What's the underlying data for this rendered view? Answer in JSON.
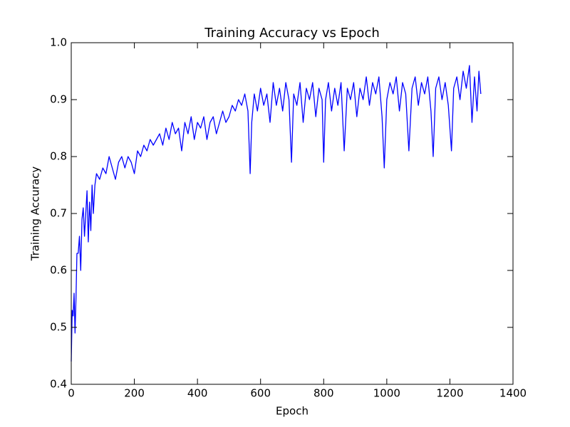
{
  "chart_data": {
    "type": "line",
    "title": "Training Accuracy vs Epoch",
    "x_label": "Epoch",
    "y_label": "Training Accuracy",
    "color": "#0000ff",
    "x": [
      0,
      3,
      6,
      9,
      12,
      15,
      18,
      22,
      26,
      30,
      34,
      38,
      42,
      46,
      50,
      54,
      58,
      62,
      66,
      70,
      75,
      80,
      90,
      100,
      110,
      120,
      130,
      140,
      150,
      160,
      170,
      180,
      190,
      200,
      210,
      220,
      230,
      240,
      250,
      260,
      270,
      280,
      290,
      300,
      310,
      320,
      330,
      340,
      350,
      360,
      370,
      380,
      390,
      400,
      410,
      420,
      430,
      440,
      450,
      460,
      470,
      480,
      490,
      500,
      510,
      520,
      530,
      540,
      550,
      560,
      567,
      572,
      580,
      590,
      600,
      610,
      620,
      630,
      640,
      650,
      660,
      670,
      680,
      690,
      698,
      705,
      715,
      725,
      735,
      745,
      755,
      765,
      775,
      785,
      795,
      800,
      806,
      815,
      825,
      835,
      845,
      855,
      865,
      875,
      885,
      895,
      905,
      915,
      925,
      935,
      945,
      955,
      965,
      975,
      985,
      992,
      1000,
      1010,
      1020,
      1030,
      1040,
      1050,
      1060,
      1070,
      1080,
      1090,
      1100,
      1110,
      1120,
      1130,
      1140,
      1147,
      1155,
      1165,
      1175,
      1185,
      1195,
      1205,
      1212,
      1222,
      1232,
      1242,
      1252,
      1262,
      1270,
      1278,
      1286,
      1292,
      1298
    ],
    "values": [
      0.44,
      0.53,
      0.52,
      0.56,
      0.49,
      0.55,
      0.63,
      0.63,
      0.66,
      0.6,
      0.69,
      0.71,
      0.66,
      0.7,
      0.74,
      0.65,
      0.72,
      0.67,
      0.75,
      0.7,
      0.75,
      0.77,
      0.76,
      0.78,
      0.77,
      0.8,
      0.78,
      0.76,
      0.79,
      0.8,
      0.78,
      0.8,
      0.79,
      0.77,
      0.81,
      0.8,
      0.82,
      0.81,
      0.83,
      0.82,
      0.83,
      0.84,
      0.82,
      0.85,
      0.83,
      0.86,
      0.84,
      0.85,
      0.81,
      0.86,
      0.84,
      0.87,
      0.83,
      0.86,
      0.85,
      0.87,
      0.83,
      0.86,
      0.87,
      0.84,
      0.86,
      0.88,
      0.86,
      0.87,
      0.89,
      0.88,
      0.9,
      0.89,
      0.91,
      0.88,
      0.77,
      0.86,
      0.91,
      0.88,
      0.92,
      0.89,
      0.91,
      0.86,
      0.93,
      0.89,
      0.92,
      0.88,
      0.93,
      0.9,
      0.79,
      0.91,
      0.89,
      0.93,
      0.86,
      0.92,
      0.9,
      0.93,
      0.87,
      0.92,
      0.9,
      0.79,
      0.9,
      0.93,
      0.88,
      0.92,
      0.89,
      0.93,
      0.81,
      0.92,
      0.9,
      0.93,
      0.87,
      0.92,
      0.9,
      0.94,
      0.89,
      0.93,
      0.91,
      0.94,
      0.87,
      0.78,
      0.9,
      0.93,
      0.91,
      0.94,
      0.88,
      0.93,
      0.91,
      0.81,
      0.92,
      0.94,
      0.89,
      0.93,
      0.91,
      0.94,
      0.88,
      0.8,
      0.92,
      0.94,
      0.9,
      0.93,
      0.89,
      0.81,
      0.92,
      0.94,
      0.9,
      0.95,
      0.92,
      0.96,
      0.86,
      0.94,
      0.88,
      0.95,
      0.91
    ],
    "xlim": [
      0,
      1400
    ],
    "xticks": [
      0,
      200,
      400,
      600,
      800,
      1000,
      1200,
      1400
    ],
    "ylim": [
      0.4,
      1
    ],
    "yticks": [
      0.4,
      0.5,
      0.6,
      0.7,
      0.8,
      0.9,
      {
        "value": 1,
        "label": "1.0"
      }
    ]
  }
}
